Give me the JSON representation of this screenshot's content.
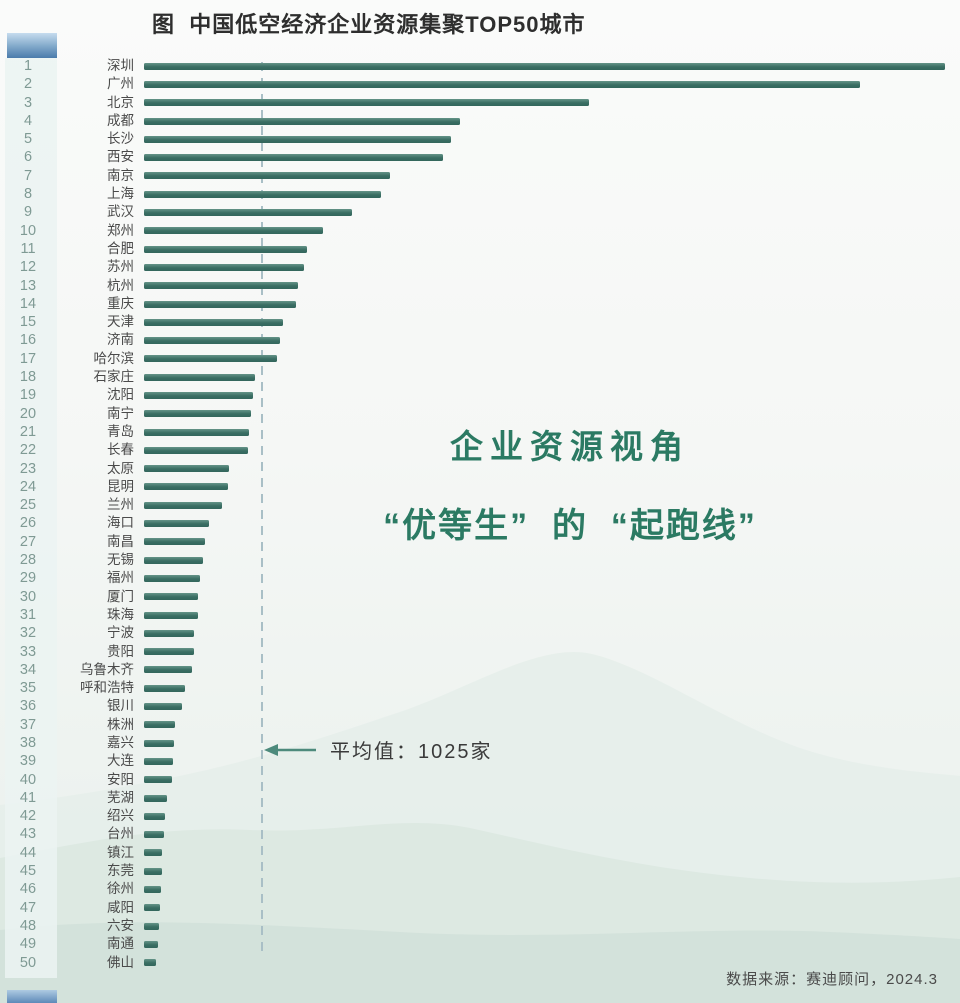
{
  "title": "图  中国低空经济企业资源集聚TOP50城市",
  "overlay": {
    "line1": "企业资源视角",
    "line2": "“优等生”  的  “起跑线”"
  },
  "annotation": {
    "average_label": "平均值：1025家",
    "average_value": 1025
  },
  "source": "数据来源：赛迪顾问，2024.3",
  "colors": {
    "bar": "#3a6e63",
    "bar_light": "#649488",
    "accent_green": "#2b7a63",
    "dashed_line": "#a9bfc6",
    "rank_text": "#7f9a94",
    "arrow": "#4d8a7c",
    "corner_block_top": "#c6dcee",
    "corner_block_bottom": "#4b7bab"
  },
  "chart_data": {
    "type": "bar",
    "orientation": "horizontal",
    "title": "中国低空经济企业资源集聚TOP50城市",
    "unit": "家",
    "average": 1025,
    "legend": "none",
    "grid": false,
    "xlim": [
      0,
      7000
    ],
    "cities": [
      {
        "rank": 1,
        "name": "深圳",
        "value": 6620
      },
      {
        "rank": 2,
        "name": "广州",
        "value": 5920
      },
      {
        "rank": 3,
        "name": "北京",
        "value": 3680
      },
      {
        "rank": 4,
        "name": "成都",
        "value": 2610
      },
      {
        "rank": 5,
        "name": "长沙",
        "value": 2540
      },
      {
        "rank": 6,
        "name": "西安",
        "value": 2470
      },
      {
        "rank": 7,
        "name": "南京",
        "value": 2030
      },
      {
        "rank": 8,
        "name": "上海",
        "value": 1960
      },
      {
        "rank": 9,
        "name": "武汉",
        "value": 1720
      },
      {
        "rank": 10,
        "name": "郑州",
        "value": 1480
      },
      {
        "rank": 11,
        "name": "合肥",
        "value": 1350
      },
      {
        "rank": 12,
        "name": "苏州",
        "value": 1320
      },
      {
        "rank": 13,
        "name": "杭州",
        "value": 1275
      },
      {
        "rank": 14,
        "name": "重庆",
        "value": 1260
      },
      {
        "rank": 15,
        "name": "天津",
        "value": 1145
      },
      {
        "rank": 16,
        "name": "济南",
        "value": 1125
      },
      {
        "rank": 17,
        "name": "哈尔滨",
        "value": 1095
      },
      {
        "rank": 18,
        "name": "石家庄",
        "value": 915
      },
      {
        "rank": 19,
        "name": "沈阳",
        "value": 900
      },
      {
        "rank": 20,
        "name": "南宁",
        "value": 885
      },
      {
        "rank": 21,
        "name": "青岛",
        "value": 870
      },
      {
        "rank": 22,
        "name": "长春",
        "value": 860
      },
      {
        "rank": 23,
        "name": "太原",
        "value": 705
      },
      {
        "rank": 24,
        "name": "昆明",
        "value": 695
      },
      {
        "rank": 25,
        "name": "兰州",
        "value": 645
      },
      {
        "rank": 26,
        "name": "海口",
        "value": 540
      },
      {
        "rank": 27,
        "name": "南昌",
        "value": 505
      },
      {
        "rank": 28,
        "name": "无锡",
        "value": 490
      },
      {
        "rank": 29,
        "name": "福州",
        "value": 460
      },
      {
        "rank": 30,
        "name": "厦门",
        "value": 450
      },
      {
        "rank": 31,
        "name": "珠海",
        "value": 445
      },
      {
        "rank": 32,
        "name": "宁波",
        "value": 415
      },
      {
        "rank": 33,
        "name": "贵阳",
        "value": 410
      },
      {
        "rank": 34,
        "name": "乌鲁木齐",
        "value": 400
      },
      {
        "rank": 35,
        "name": "呼和浩特",
        "value": 340
      },
      {
        "rank": 36,
        "name": "银川",
        "value": 315
      },
      {
        "rank": 37,
        "name": "株洲",
        "value": 252
      },
      {
        "rank": 38,
        "name": "嘉兴",
        "value": 248
      },
      {
        "rank": 39,
        "name": "大连",
        "value": 242
      },
      {
        "rank": 40,
        "name": "安阳",
        "value": 235
      },
      {
        "rank": 41,
        "name": "芜湖",
        "value": 190
      },
      {
        "rank": 42,
        "name": "绍兴",
        "value": 172
      },
      {
        "rank": 43,
        "name": "台州",
        "value": 162
      },
      {
        "rank": 44,
        "name": "镇江",
        "value": 152
      },
      {
        "rank": 45,
        "name": "东莞",
        "value": 148
      },
      {
        "rank": 46,
        "name": "徐州",
        "value": 142
      },
      {
        "rank": 47,
        "name": "咸阳",
        "value": 135
      },
      {
        "rank": 48,
        "name": "六安",
        "value": 126
      },
      {
        "rank": 49,
        "name": "南通",
        "value": 116
      },
      {
        "rank": 50,
        "name": "佛山",
        "value": 100
      }
    ]
  }
}
